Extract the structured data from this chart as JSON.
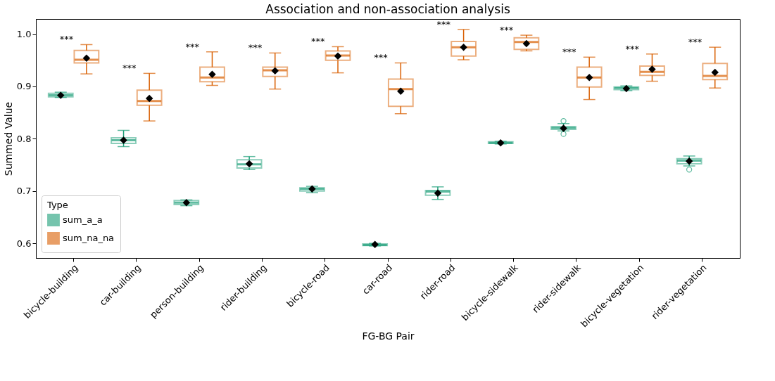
{
  "chart_data": {
    "type": "box",
    "title": "Association and non-association analysis",
    "xlabel": "FG-BG Pair",
    "ylabel": "Summed Value",
    "legend_title": "Type",
    "legend": "bottom left",
    "grid": false,
    "categories": [
      "bicycle-building",
      "car-building",
      "person-building",
      "rider-building",
      "bicycle-road",
      "car-road",
      "rider-road",
      "bicycle-sidewalk",
      "rider-sidewalk",
      "bicycle-vegetation",
      "rider-vegetation"
    ],
    "ylim": [
      0.572,
      1.029
    ],
    "yticks": [
      {
        "value": 0.6,
        "label": "0.6"
      },
      {
        "value": 0.7,
        "label": "0.7"
      },
      {
        "value": 0.8,
        "label": "0.8"
      },
      {
        "value": 0.9,
        "label": "0.9"
      },
      {
        "value": 1.0,
        "label": "1.0"
      }
    ],
    "series": [
      {
        "name": "sum_a_a",
        "color": "#1b9e77",
        "boxes": [
          {
            "low": 0.879,
            "q1": 0.88,
            "median": 0.883,
            "q3": 0.887,
            "high": 0.889,
            "mean": 0.883
          },
          {
            "low": 0.785,
            "q1": 0.791,
            "median": 0.797,
            "q3": 0.802,
            "high": 0.816,
            "mean": 0.797
          },
          {
            "low": 0.672,
            "q1": 0.674,
            "median": 0.678,
            "q3": 0.682,
            "high": 0.683,
            "mean": 0.678
          },
          {
            "low": 0.741,
            "q1": 0.744,
            "median": 0.751,
            "q3": 0.76,
            "high": 0.766,
            "mean": 0.752
          },
          {
            "low": 0.697,
            "q1": 0.7,
            "median": 0.704,
            "q3": 0.706,
            "high": 0.709,
            "mean": 0.704
          },
          {
            "low": 0.595,
            "q1": 0.596,
            "median": 0.597,
            "q3": 0.599,
            "high": 0.6,
            "mean": 0.598
          },
          {
            "low": 0.684,
            "q1": 0.692,
            "median": 0.699,
            "q3": 0.701,
            "high": 0.708,
            "mean": 0.696
          },
          {
            "low": 0.79,
            "q1": 0.791,
            "median": 0.792,
            "q3": 0.794,
            "high": 0.795,
            "mean": 0.792
          },
          {
            "low": 0.815,
            "q1": 0.818,
            "median": 0.821,
            "q3": 0.823,
            "high": 0.829,
            "mean": 0.82,
            "outliers": [
              0.834,
              0.809
            ]
          },
          {
            "low": 0.892,
            "q1": 0.894,
            "median": 0.897,
            "q3": 0.899,
            "high": 0.901,
            "mean": 0.896
          },
          {
            "low": 0.748,
            "q1": 0.752,
            "median": 0.758,
            "q3": 0.762,
            "high": 0.767,
            "mean": 0.757,
            "outliers": [
              0.741
            ]
          }
        ]
      },
      {
        "name": "sum_na_na",
        "color": "#d95f02",
        "boxes": [
          {
            "low": 0.924,
            "q1": 0.945,
            "median": 0.951,
            "q3": 0.969,
            "high": 0.98,
            "mean": 0.954
          },
          {
            "low": 0.834,
            "q1": 0.864,
            "median": 0.872,
            "q3": 0.893,
            "high": 0.925,
            "mean": 0.877
          },
          {
            "low": 0.902,
            "q1": 0.909,
            "median": 0.917,
            "q3": 0.937,
            "high": 0.966,
            "mean": 0.923
          },
          {
            "low": 0.895,
            "q1": 0.919,
            "median": 0.931,
            "q3": 0.937,
            "high": 0.964,
            "mean": 0.93
          },
          {
            "low": 0.926,
            "q1": 0.95,
            "median": 0.959,
            "q3": 0.968,
            "high": 0.976,
            "mean": 0.958
          },
          {
            "low": 0.848,
            "q1": 0.862,
            "median": 0.895,
            "q3": 0.914,
            "high": 0.945,
            "mean": 0.891
          },
          {
            "low": 0.951,
            "q1": 0.958,
            "median": 0.975,
            "q3": 0.986,
            "high": 1.009,
            "mean": 0.975
          },
          {
            "low": 0.968,
            "q1": 0.971,
            "median": 0.985,
            "q3": 0.993,
            "high": 0.998,
            "mean": 0.982
          },
          {
            "low": 0.875,
            "q1": 0.899,
            "median": 0.917,
            "q3": 0.937,
            "high": 0.956,
            "mean": 0.917
          },
          {
            "low": 0.91,
            "q1": 0.921,
            "median": 0.928,
            "q3": 0.939,
            "high": 0.962,
            "mean": 0.933
          },
          {
            "low": 0.897,
            "q1": 0.913,
            "median": 0.92,
            "q3": 0.944,
            "high": 0.975,
            "mean": 0.927
          }
        ]
      }
    ],
    "annotations": [
      "***",
      "***",
      "***",
      "***",
      "***",
      "***",
      "***",
      "***",
      "***",
      "***",
      "***"
    ]
  }
}
